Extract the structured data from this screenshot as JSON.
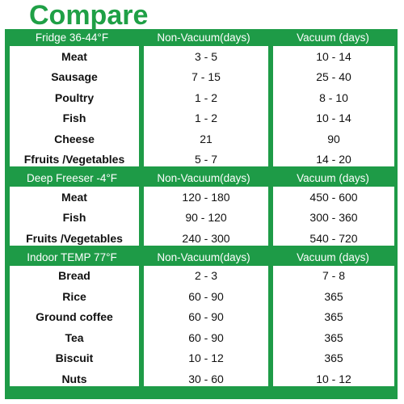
{
  "title": "Compare",
  "sections": [
    {
      "header": [
        "Fridge 36-44°F",
        "Non-Vacuum(days)",
        "Vacuum (days)"
      ],
      "rows": [
        [
          "Meat",
          "3 - 5",
          "10 - 14"
        ],
        [
          "Sausage",
          "7 - 15",
          "25 - 40"
        ],
        [
          "Poultry",
          "1 - 2",
          "8 - 10"
        ],
        [
          "Fish",
          "1 - 2",
          "10 - 14"
        ],
        [
          "Cheese",
          "21",
          "90"
        ],
        [
          "Ffruits /Vegetables",
          "5 - 7",
          "14 - 20"
        ]
      ]
    },
    {
      "header": [
        "Deep Freeser -4°F",
        "Non-Vacuum(days)",
        "Vacuum (days)"
      ],
      "rows": [
        [
          "Meat",
          "120 - 180",
          "450 - 600"
        ],
        [
          "Fish",
          "90 - 120",
          "300 - 360"
        ],
        [
          "Fruits /Vegetables",
          "240 - 300",
          "540 - 720"
        ]
      ]
    },
    {
      "header": [
        "Indoor TEMP 77°F",
        "Non-Vacuum(days)",
        "Vacuum (days)"
      ],
      "rows": [
        [
          "Bread",
          "2 - 3",
          "7 - 8"
        ],
        [
          "Rice",
          "60 - 90",
          "365"
        ],
        [
          "Ground coffee",
          "60 - 90",
          "365"
        ],
        [
          "Tea",
          "60 - 90",
          "365"
        ],
        [
          "Biscuit",
          "10 - 12",
          "365"
        ],
        [
          "Nuts",
          "30 - 60",
          "10 - 12"
        ]
      ]
    }
  ],
  "colors": {
    "green": "#1e9b47",
    "title_green": "#1fa046",
    "cell_bg": "#ffffff"
  }
}
